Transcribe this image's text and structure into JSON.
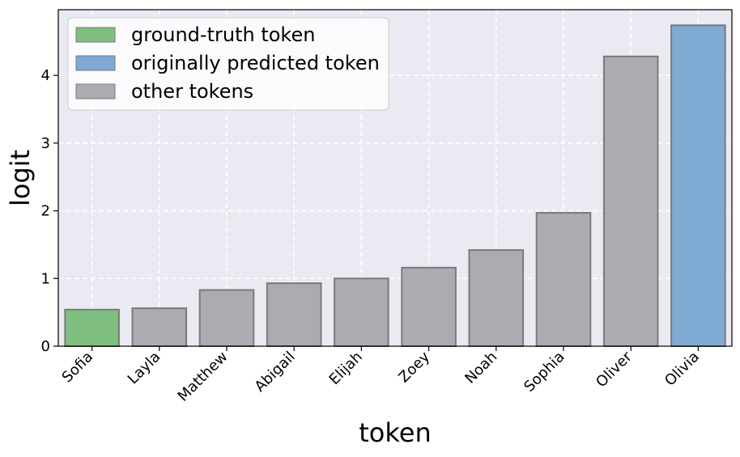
{
  "chart_data": {
    "type": "bar",
    "categories": [
      "Sofia",
      "Layla",
      "Matthew",
      "Abigail",
      "Elijah",
      "Zoey",
      "Noah",
      "Sophia",
      "Oliver",
      "Olivia"
    ],
    "values": [
      0.54,
      0.56,
      0.83,
      0.93,
      1.0,
      1.16,
      1.42,
      1.97,
      4.28,
      4.74
    ],
    "bar_groups": [
      "ground-truth token",
      "other tokens",
      "other tokens",
      "other tokens",
      "other tokens",
      "other tokens",
      "other tokens",
      "other tokens",
      "other tokens",
      "originally predicted token"
    ],
    "xlabel": "token",
    "ylabel": "logit",
    "ylim": [
      0,
      4.97
    ],
    "yticks": [
      0,
      1,
      2,
      3,
      4
    ],
    "grid": true,
    "legend": {
      "placement": "top-left",
      "entries": [
        {
          "label": "ground-truth token",
          "color": "#7fbf7f"
        },
        {
          "label": "originally predicted token",
          "color": "#7faad4"
        },
        {
          "label": "other tokens",
          "color": "#acabb2"
        }
      ]
    },
    "colors": {
      "plot_background": "#eaeaf2",
      "bar_edge": "#7a7a7a",
      "grid": "#ffffff"
    }
  }
}
